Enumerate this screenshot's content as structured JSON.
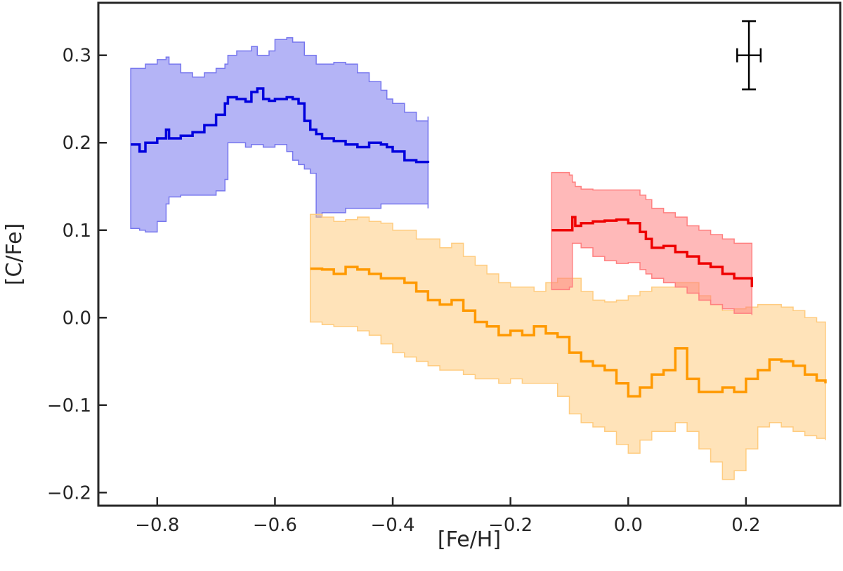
{
  "chart_data": {
    "type": "line",
    "title": "",
    "xlabel": "[Fe/H]",
    "ylabel": "[C/Fe]",
    "xlim": [
      -0.9,
      0.36
    ],
    "ylim": [
      -0.215,
      0.36
    ],
    "grid": false,
    "legend": "none",
    "x_ticks": [
      {
        "value": -0.8,
        "label": "−0.8"
      },
      {
        "value": -0.6,
        "label": "−0.6"
      },
      {
        "value": -0.4,
        "label": "−0.4"
      },
      {
        "value": -0.2,
        "label": "−0.2"
      },
      {
        "value": 0.0,
        "label": "0.0"
      },
      {
        "value": 0.2,
        "label": "0.2"
      }
    ],
    "y_ticks": [
      {
        "value": -0.2,
        "label": "−0.2"
      },
      {
        "value": -0.1,
        "label": "−0.1"
      },
      {
        "value": 0.0,
        "label": "0.0"
      },
      {
        "value": 0.1,
        "label": "0.1"
      },
      {
        "value": 0.2,
        "label": "0.2"
      },
      {
        "value": 0.3,
        "label": "0.3"
      }
    ],
    "error_bar": {
      "x": 0.205,
      "y": 0.3,
      "xerr": 0.02,
      "yerr": 0.039,
      "color": "#000000"
    },
    "series": [
      {
        "name": "blue",
        "color": "#0000dd",
        "band_color": "#7777ee",
        "x": [
          -0.845,
          -0.838,
          -0.83,
          -0.82,
          -0.8,
          -0.785,
          -0.78,
          -0.76,
          -0.74,
          -0.72,
          -0.7,
          -0.685,
          -0.68,
          -0.665,
          -0.65,
          -0.64,
          -0.63,
          -0.62,
          -0.61,
          -0.6,
          -0.58,
          -0.57,
          -0.56,
          -0.55,
          -0.54,
          -0.53,
          -0.52,
          -0.5,
          -0.48,
          -0.46,
          -0.44,
          -0.42,
          -0.41,
          -0.4,
          -0.38,
          -0.36,
          -0.34
        ],
        "y": [
          0.198,
          0.198,
          0.19,
          0.2,
          0.205,
          0.215,
          0.205,
          0.208,
          0.212,
          0.22,
          0.232,
          0.245,
          0.252,
          0.25,
          0.247,
          0.258,
          0.262,
          0.25,
          0.248,
          0.25,
          0.252,
          0.25,
          0.245,
          0.225,
          0.215,
          0.21,
          0.205,
          0.202,
          0.198,
          0.195,
          0.2,
          0.198,
          0.195,
          0.19,
          0.18,
          0.178,
          0.177
        ],
        "upper": [
          0.285,
          0.285,
          0.285,
          0.29,
          0.295,
          0.298,
          0.29,
          0.28,
          0.275,
          0.28,
          0.285,
          0.29,
          0.3,
          0.305,
          0.305,
          0.31,
          0.3,
          0.3,
          0.305,
          0.318,
          0.32,
          0.315,
          0.315,
          0.3,
          0.3,
          0.29,
          0.29,
          0.292,
          0.29,
          0.28,
          0.27,
          0.26,
          0.25,
          0.245,
          0.235,
          0.225,
          0.23
        ],
        "lower": [
          0.102,
          0.102,
          0.1,
          0.098,
          0.11,
          0.13,
          0.138,
          0.14,
          0.14,
          0.14,
          0.145,
          0.158,
          0.2,
          0.2,
          0.195,
          0.198,
          0.198,
          0.195,
          0.195,
          0.198,
          0.19,
          0.18,
          0.175,
          0.17,
          0.165,
          0.115,
          0.12,
          0.12,
          0.125,
          0.125,
          0.125,
          0.13,
          0.13,
          0.13,
          0.13,
          0.13,
          0.125
        ]
      },
      {
        "name": "orange",
        "color": "#ff9900",
        "band_color": "#ffcc80",
        "x": [
          -0.54,
          -0.52,
          -0.5,
          -0.48,
          -0.46,
          -0.44,
          -0.42,
          -0.4,
          -0.38,
          -0.36,
          -0.34,
          -0.32,
          -0.3,
          -0.28,
          -0.26,
          -0.24,
          -0.22,
          -0.2,
          -0.18,
          -0.16,
          -0.14,
          -0.12,
          -0.1,
          -0.08,
          -0.06,
          -0.04,
          -0.02,
          0.0,
          0.02,
          0.04,
          0.06,
          0.08,
          0.1,
          0.12,
          0.14,
          0.16,
          0.18,
          0.2,
          0.22,
          0.24,
          0.26,
          0.28,
          0.3,
          0.32,
          0.335
        ],
        "y": [
          0.056,
          0.055,
          0.05,
          0.058,
          0.055,
          0.05,
          0.045,
          0.045,
          0.04,
          0.03,
          0.02,
          0.015,
          0.02,
          0.008,
          -0.005,
          -0.01,
          -0.02,
          -0.015,
          -0.02,
          -0.01,
          -0.018,
          -0.022,
          -0.04,
          -0.05,
          -0.055,
          -0.06,
          -0.075,
          -0.09,
          -0.08,
          -0.065,
          -0.06,
          -0.035,
          -0.07,
          -0.085,
          -0.085,
          -0.08,
          -0.085,
          -0.07,
          -0.06,
          -0.048,
          -0.05,
          -0.055,
          -0.065,
          -0.072,
          -0.075
        ],
        "upper": [
          0.118,
          0.115,
          0.11,
          0.112,
          0.115,
          0.11,
          0.108,
          0.1,
          0.1,
          0.09,
          0.09,
          0.08,
          0.085,
          0.07,
          0.06,
          0.05,
          0.04,
          0.035,
          0.035,
          0.03,
          0.04,
          0.045,
          0.045,
          0.03,
          0.02,
          0.018,
          0.02,
          0.025,
          0.03,
          0.035,
          0.035,
          0.04,
          0.04,
          0.025,
          0.015,
          0.008,
          0.01,
          0.012,
          0.015,
          0.015,
          0.012,
          0.008,
          0.0,
          -0.005,
          -0.01
        ],
        "lower": [
          -0.005,
          -0.008,
          -0.01,
          -0.01,
          -0.015,
          -0.02,
          -0.03,
          -0.04,
          -0.045,
          -0.05,
          -0.055,
          -0.06,
          -0.06,
          -0.065,
          -0.07,
          -0.07,
          -0.075,
          -0.07,
          -0.075,
          -0.075,
          -0.075,
          -0.09,
          -0.11,
          -0.12,
          -0.125,
          -0.13,
          -0.145,
          -0.155,
          -0.14,
          -0.13,
          -0.13,
          -0.12,
          -0.13,
          -0.15,
          -0.165,
          -0.185,
          -0.175,
          -0.15,
          -0.125,
          -0.12,
          -0.125,
          -0.13,
          -0.135,
          -0.138,
          -0.14
        ]
      },
      {
        "name": "red",
        "color": "#ee0000",
        "band_color": "#ff8080",
        "x": [
          -0.13,
          -0.12,
          -0.1,
          -0.095,
          -0.09,
          -0.08,
          -0.06,
          -0.04,
          -0.02,
          0.0,
          0.02,
          0.03,
          0.04,
          0.06,
          0.08,
          0.1,
          0.12,
          0.14,
          0.16,
          0.18,
          0.21
        ],
        "y": [
          0.1,
          0.1,
          0.1,
          0.115,
          0.105,
          0.108,
          0.11,
          0.111,
          0.112,
          0.108,
          0.098,
          0.09,
          0.08,
          0.082,
          0.075,
          0.07,
          0.062,
          0.058,
          0.05,
          0.045,
          0.035
        ],
        "upper": [
          0.166,
          0.166,
          0.163,
          0.155,
          0.15,
          0.147,
          0.146,
          0.146,
          0.146,
          0.146,
          0.14,
          0.135,
          0.125,
          0.12,
          0.115,
          0.105,
          0.1,
          0.095,
          0.09,
          0.085,
          0.075
        ],
        "lower": [
          0.032,
          0.032,
          0.035,
          0.085,
          0.085,
          0.08,
          0.07,
          0.065,
          0.062,
          0.063,
          0.055,
          0.05,
          0.045,
          0.04,
          0.035,
          0.028,
          0.02,
          0.015,
          0.01,
          0.005,
          0.003
        ]
      }
    ]
  }
}
